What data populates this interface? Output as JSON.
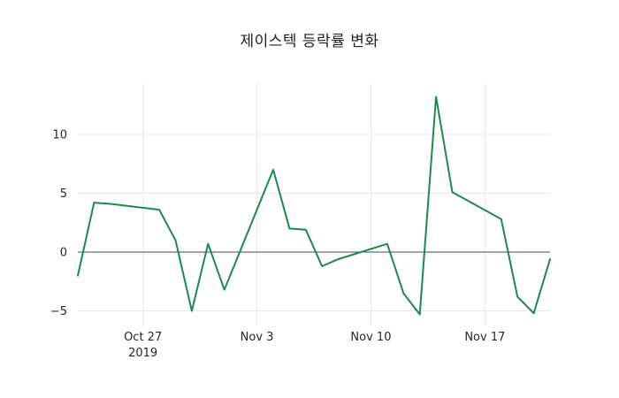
{
  "chart_data": {
    "type": "line",
    "title": "제이스텍 등락률 변화",
    "xlabel": "",
    "ylabel": "",
    "background": "#ffffff",
    "grid": true,
    "grid_color": "#e8e8e8",
    "zero_line": true,
    "zero_line_color": "#4a4a4a",
    "line_color": "#1a8a4f",
    "xlim": [
      "2019-10-23",
      "2019-11-21"
    ],
    "ylim": [
      -6.3,
      14.4
    ],
    "series": [
      {
        "name": "제이스텍 등락률",
        "x": [
          "2019-10-23",
          "2019-10-24",
          "2019-10-25",
          "2019-10-28",
          "2019-10-29",
          "2019-10-30",
          "2019-10-31",
          "2019-11-01",
          "2019-11-04",
          "2019-11-05",
          "2019-11-06",
          "2019-11-07",
          "2019-11-08",
          "2019-11-11",
          "2019-11-12",
          "2019-11-13",
          "2019-11-14",
          "2019-11-15",
          "2019-11-18",
          "2019-11-19",
          "2019-11-20",
          "2019-11-21"
        ],
        "values": [
          -2.0,
          4.2,
          4.1,
          3.6,
          1.0,
          -5.0,
          0.7,
          -3.2,
          7.0,
          2.0,
          1.9,
          -1.2,
          -0.6,
          0.7,
          -3.5,
          -5.3,
          13.2,
          5.1,
          2.8,
          -3.8,
          -5.2,
          -0.6
        ]
      }
    ],
    "x_ticks": [
      {
        "date": "2019-10-27",
        "label": "Oct 27",
        "sublabel": "2019"
      },
      {
        "date": "2019-11-03",
        "label": "Nov 3",
        "sublabel": ""
      },
      {
        "date": "2019-11-10",
        "label": "Nov 10",
        "sublabel": ""
      },
      {
        "date": "2019-11-17",
        "label": "Nov 17",
        "sublabel": ""
      }
    ],
    "y_ticks": [
      {
        "value": -5,
        "label": "−5"
      },
      {
        "value": 0,
        "label": "0"
      },
      {
        "value": 5,
        "label": "5"
      },
      {
        "value": 10,
        "label": "10"
      }
    ]
  }
}
